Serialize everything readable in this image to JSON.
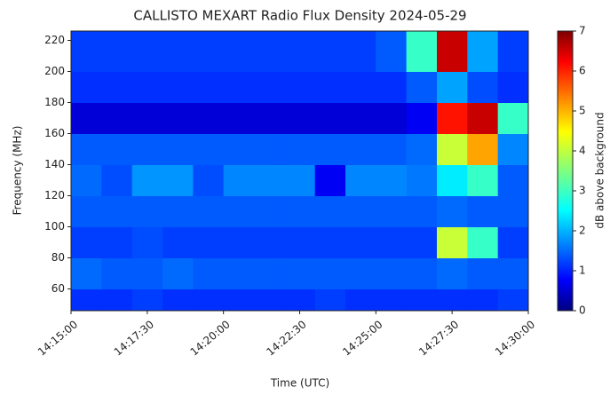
{
  "chart_data": {
    "type": "heatmap",
    "title": "CALLISTO MEXART Radio Flux Density 2024-05-29",
    "x_label": "Time (UTC)",
    "y_label": "Frequency (MHz)",
    "colorbar_label": "dB above background",
    "xlim": [
      "14:15:00",
      "14:30:00"
    ],
    "xticks": [
      "14:15:00",
      "14:17:30",
      "14:20:00",
      "14:22:30",
      "14:25:00",
      "14:27:30",
      "14:30:00"
    ],
    "ylim": [
      46,
      226
    ],
    "yticks": [
      60,
      80,
      100,
      120,
      140,
      160,
      180,
      200,
      220
    ],
    "clim": [
      0,
      7
    ],
    "cticks": [
      0,
      1,
      2,
      3,
      4,
      5,
      6,
      7
    ],
    "colormap": "jet",
    "xbins": [
      "14:15:00",
      "14:16:00",
      "14:17:00",
      "14:18:00",
      "14:19:00",
      "14:20:00",
      "14:21:00",
      "14:22:00",
      "14:23:00",
      "14:24:00",
      "14:25:00",
      "14:26:00",
      "14:27:00",
      "14:28:00",
      "14:29:00",
      "14:30:00"
    ],
    "ybins": [
      46,
      60,
      80,
      100,
      120,
      140,
      160,
      180,
      200,
      226
    ],
    "values": [
      [
        1.2,
        1.2,
        1.3,
        1.2,
        1.2,
        1.2,
        1.2,
        1.2,
        1.3,
        1.2,
        1.2,
        1.2,
        1.2,
        1.2,
        1.3
      ],
      [
        1.6,
        1.5,
        1.5,
        1.6,
        1.5,
        1.5,
        1.5,
        1.5,
        1.5,
        1.5,
        1.5,
        1.5,
        1.6,
        1.5,
        1.5
      ],
      [
        1.3,
        1.3,
        1.4,
        1.3,
        1.3,
        1.3,
        1.3,
        1.3,
        1.3,
        1.3,
        1.3,
        1.3,
        4,
        3,
        1.3
      ],
      [
        1.5,
        1.5,
        1.5,
        1.5,
        1.5,
        1.5,
        1.5,
        1.5,
        1.5,
        1.5,
        1.5,
        1.5,
        1.6,
        1.5,
        1.5
      ],
      [
        1.6,
        1.4,
        1.9,
        1.9,
        1.4,
        1.8,
        1.8,
        1.8,
        0.8,
        1.8,
        1.8,
        1.7,
        2.5,
        3,
        1.5
      ],
      [
        1.5,
        1.5,
        1.5,
        1.5,
        1.5,
        1.5,
        1.5,
        1.5,
        1.5,
        1.5,
        1.5,
        1.6,
        4,
        5,
        1.8
      ],
      [
        0.6,
        0.6,
        0.6,
        0.6,
        0.6,
        0.6,
        0.6,
        0.6,
        0.6,
        0.6,
        0.6,
        0.8,
        6,
        6.5,
        3
      ],
      [
        1.2,
        1.2,
        1.2,
        1.2,
        1.2,
        1.2,
        1.2,
        1.2,
        1.2,
        1.2,
        1.2,
        1.5,
        2,
        1.4,
        1.2
      ],
      [
        1.3,
        1.3,
        1.3,
        1.3,
        1.3,
        1.3,
        1.3,
        1.3,
        1.3,
        1.3,
        1.5,
        3,
        6.5,
        2,
        1.3
      ]
    ]
  }
}
